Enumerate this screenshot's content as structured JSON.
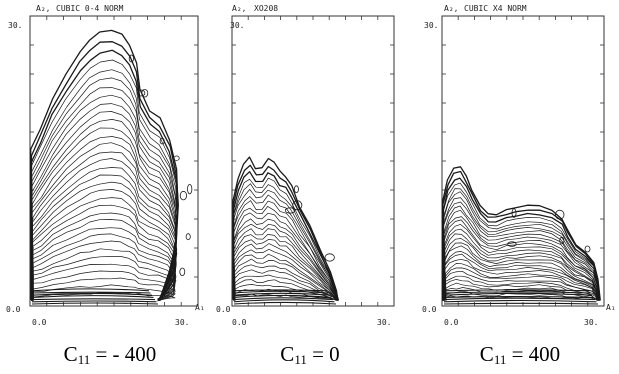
{
  "panels": [
    {
      "header_axis": "A₂,",
      "header_title": "CUBIC 0-4 NORM",
      "y_max_label": "30.",
      "y_min_label": "0.0",
      "x_min_label": "0.0",
      "x_max_label": "30.",
      "x_axis_label": "A₁",
      "caption_sym": "C",
      "caption_sub": "11",
      "caption_value": " = - 400"
    },
    {
      "header_axis": "A₂,",
      "header_title": "XO208",
      "y_max_label": "30.",
      "y_min_label": "0.0",
      "x_min_label": "0.0",
      "x_max_label": "30.",
      "x_axis_label": "A₁",
      "caption_sym": "C",
      "caption_sub": "11",
      "caption_value": " = 0"
    },
    {
      "header_axis": "A₂,",
      "header_title": "CUBIC X4 NORM",
      "y_max_label": "30.",
      "y_min_label": "0.0",
      "x_min_label": "0.0",
      "x_max_label": "30.",
      "x_axis_label": "A₁",
      "caption_sym": "C",
      "caption_sub": "11",
      "caption_value": " = 400"
    }
  ],
  "colors": {
    "ink": "#1a1a1a",
    "frame": "#333333",
    "background": "#ffffff"
  }
}
